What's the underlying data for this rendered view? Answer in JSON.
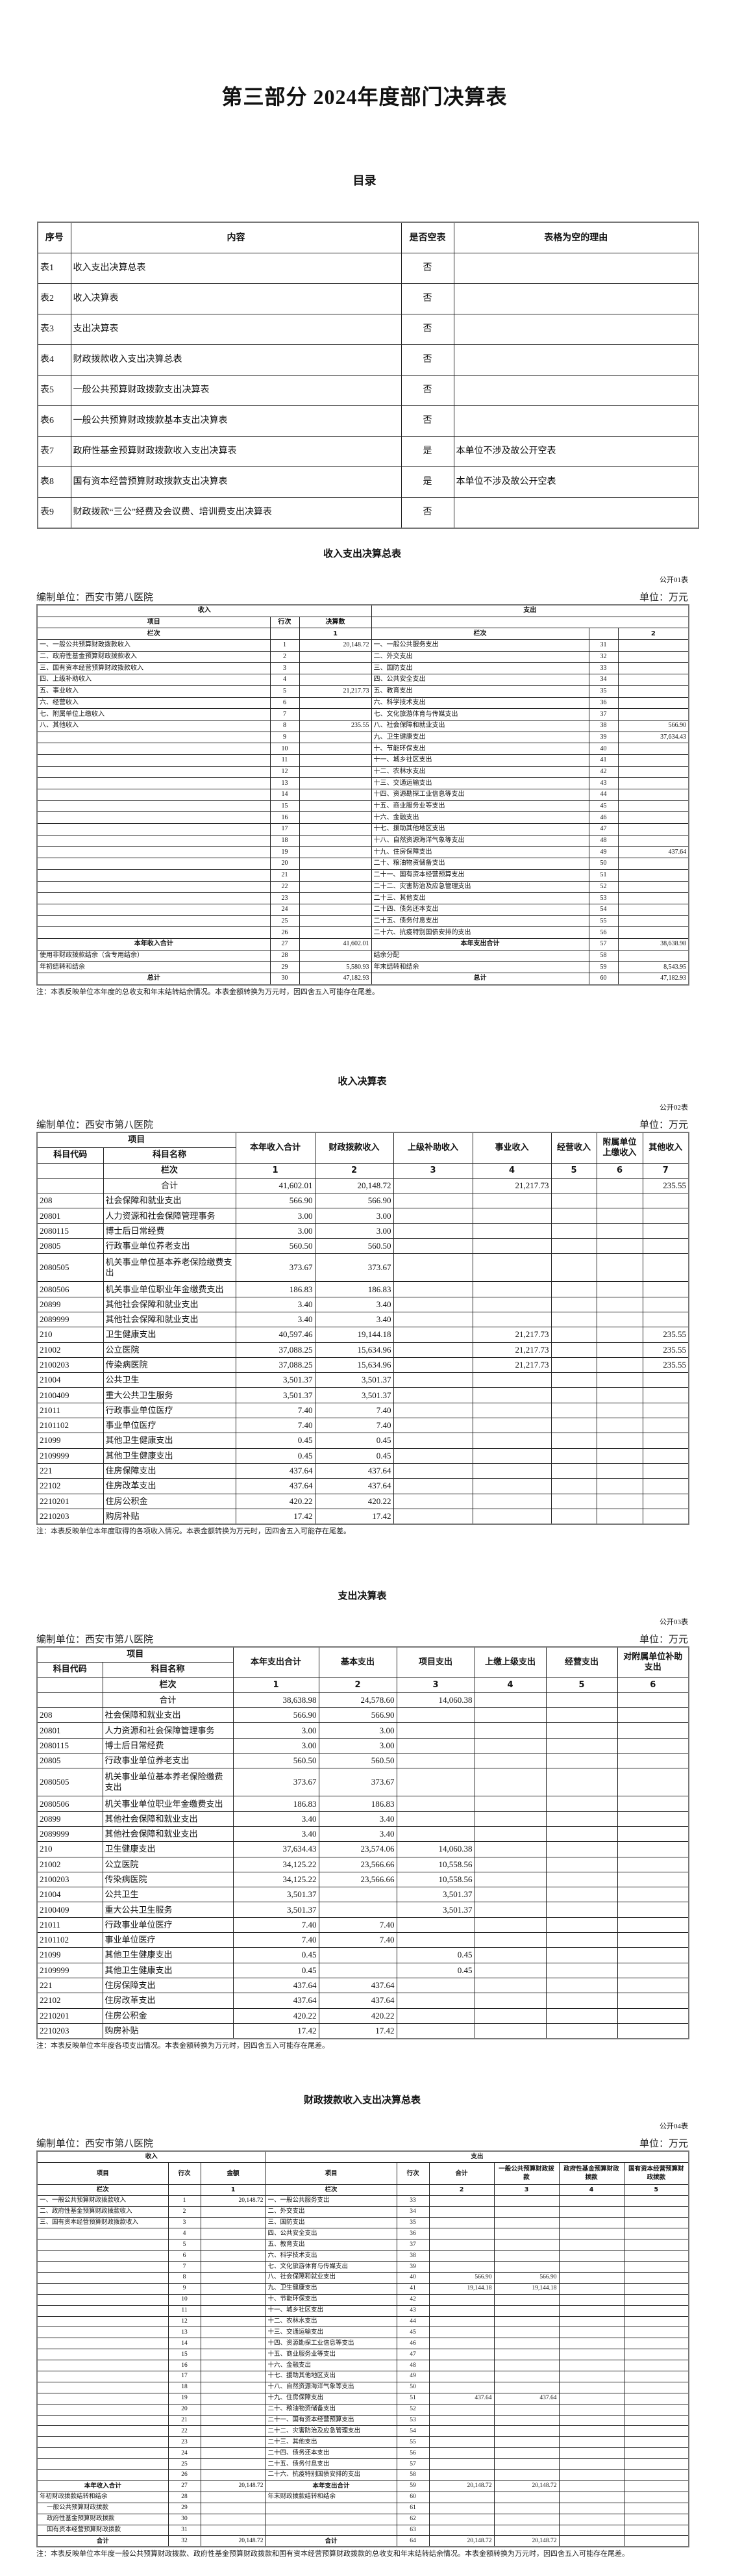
{
  "page_title": "第三部分 2024年度部门决算表",
  "toc": {
    "title": "目录",
    "headers": [
      "序号",
      "内容",
      "是否空表",
      "表格为空的理由"
    ],
    "rows": [
      [
        "表1",
        "收入支出决算总表",
        "否",
        ""
      ],
      [
        "表2",
        "收入决算表",
        "否",
        ""
      ],
      [
        "表3",
        "支出决算表",
        "否",
        ""
      ],
      [
        "表4",
        "财政拨款收入支出决算总表",
        "否",
        ""
      ],
      [
        "表5",
        "一般公共预算财政拨款支出决算表",
        "否",
        ""
      ],
      [
        "表6",
        "一般公共预算财政拨款基本支出决算表",
        "否",
        ""
      ],
      [
        "表7",
        "政府性基金预算财政拨款收入支出决算表",
        "是",
        "本单位不涉及故公开空表"
      ],
      [
        "表8",
        "国有资本经营预算财政拨款支出决算表",
        "是",
        "本单位不涉及故公开空表"
      ],
      [
        "表9",
        "财政拨款“三公”经费及会议费、培训费支出决算表",
        "否",
        ""
      ]
    ]
  },
  "org": "编制单位：西安市第八医院",
  "unit": "单位：万元",
  "t1": {
    "title": "收入支出决算总表",
    "code": "公开01表",
    "income_header": "收入",
    "expense_header": "支出",
    "col_headers": [
      "项目",
      "行次",
      "决算数"
    ],
    "lanci": [
      "栏次",
      "",
      "1",
      "栏次",
      "",
      "2"
    ],
    "rows": [
      [
        "一、一般公共预算财政拨款收入",
        "1",
        "20,148.72",
        "一、一般公共服务支出",
        "31",
        ""
      ],
      [
        "二、政府性基金预算财政拨款收入",
        "2",
        "",
        "二、外交支出",
        "32",
        ""
      ],
      [
        "三、国有资本经营预算财政拨款收入",
        "3",
        "",
        "三、国防支出",
        "33",
        ""
      ],
      [
        "四、上级补助收入",
        "4",
        "",
        "四、公共安全支出",
        "34",
        ""
      ],
      [
        "五、事业收入",
        "5",
        "21,217.73",
        "五、教育支出",
        "35",
        ""
      ],
      [
        "六、经营收入",
        "6",
        "",
        "六、科学技术支出",
        "36",
        ""
      ],
      [
        "七、附属单位上缴收入",
        "7",
        "",
        "七、文化旅游体育与传媒支出",
        "37",
        ""
      ],
      [
        "八、其他收入",
        "8",
        "235.55",
        "八、社会保障和就业支出",
        "38",
        "566.90"
      ],
      [
        "",
        "9",
        "",
        "九、卫生健康支出",
        "39",
        "37,634.43"
      ],
      [
        "",
        "10",
        "",
        "十、节能环保支出",
        "40",
        ""
      ],
      [
        "",
        "11",
        "",
        "十一、城乡社区支出",
        "41",
        ""
      ],
      [
        "",
        "12",
        "",
        "十二、农林水支出",
        "42",
        ""
      ],
      [
        "",
        "13",
        "",
        "十三、交通运输支出",
        "43",
        ""
      ],
      [
        "",
        "14",
        "",
        "十四、资源勘探工业信息等支出",
        "44",
        ""
      ],
      [
        "",
        "15",
        "",
        "十五、商业服务业等支出",
        "45",
        ""
      ],
      [
        "",
        "16",
        "",
        "十六、金融支出",
        "46",
        ""
      ],
      [
        "",
        "17",
        "",
        "十七、援助其他地区支出",
        "47",
        ""
      ],
      [
        "",
        "18",
        "",
        "十八、自然资源海洋气象等支出",
        "48",
        ""
      ],
      [
        "",
        "19",
        "",
        "十九、住房保障支出",
        "49",
        "437.64"
      ],
      [
        "",
        "20",
        "",
        "二十、粮油物资储备支出",
        "50",
        ""
      ],
      [
        "",
        "21",
        "",
        "二十一、国有资本经营预算支出",
        "51",
        ""
      ],
      [
        "",
        "22",
        "",
        "二十二、灾害防治及应急管理支出",
        "52",
        ""
      ],
      [
        "",
        "23",
        "",
        "二十三、其他支出",
        "53",
        ""
      ],
      [
        "",
        "24",
        "",
        "二十四、债务还本支出",
        "54",
        ""
      ],
      [
        "",
        "25",
        "",
        "二十五、债务付息支出",
        "55",
        ""
      ],
      [
        "",
        "26",
        "",
        "二十六、抗疫特别国债安排的支出",
        "56",
        ""
      ],
      [
        "本年收入合计",
        "27",
        "41,602.01",
        "本年支出合计",
        "57",
        "38,638.98"
      ],
      [
        "使用非财政拨款结余（含专用结余）",
        "28",
        "",
        "结余分配",
        "58",
        ""
      ],
      [
        "年初结转和结余",
        "29",
        "5,580.93",
        "年末结转和结余",
        "59",
        "8,543.95"
      ],
      [
        "总计",
        "30",
        "47,182.93",
        "总计",
        "60",
        "47,182.93"
      ]
    ],
    "note": "注：本表反映单位本年度的总收支和年末结转结余情况。本表金额转换为万元时，因四舍五入可能存在尾差。"
  },
  "t2": {
    "title": "收入决算表",
    "code": "公开02表",
    "item_header": "项目",
    "sub_headers": [
      "科目代码",
      "科目名称"
    ],
    "col_headers": [
      "本年收入合计",
      "财政拨款收入",
      "上级补助收入",
      "事业收入",
      "经营收入",
      "附属单位上缴收入",
      "其他收入"
    ],
    "lanci": [
      "",
      "栏次",
      "1",
      "2",
      "3",
      "4",
      "5",
      "6",
      "7"
    ],
    "rows": [
      [
        "",
        "合计",
        "41,602.01",
        "20,148.72",
        "",
        "21,217.73",
        "",
        "",
        "235.55"
      ],
      [
        "208",
        "社会保障和就业支出",
        "566.90",
        "566.90",
        "",
        "",
        "",
        "",
        ""
      ],
      [
        "20801",
        "人力资源和社会保障管理事务",
        "3.00",
        "3.00",
        "",
        "",
        "",
        "",
        ""
      ],
      [
        "2080115",
        "博士后日常经费",
        "3.00",
        "3.00",
        "",
        "",
        "",
        "",
        ""
      ],
      [
        "20805",
        "行政事业单位养老支出",
        "560.50",
        "560.50",
        "",
        "",
        "",
        "",
        ""
      ],
      [
        "2080505",
        "机关事业单位基本养老保险缴费支出",
        "373.67",
        "373.67",
        "",
        "",
        "",
        "",
        ""
      ],
      [
        "2080506",
        "机关事业单位职业年金缴费支出",
        "186.83",
        "186.83",
        "",
        "",
        "",
        "",
        ""
      ],
      [
        "20899",
        "其他社会保障和就业支出",
        "3.40",
        "3.40",
        "",
        "",
        "",
        "",
        ""
      ],
      [
        "2089999",
        "其他社会保障和就业支出",
        "3.40",
        "3.40",
        "",
        "",
        "",
        "",
        ""
      ],
      [
        "210",
        "卫生健康支出",
        "40,597.46",
        "19,144.18",
        "",
        "21,217.73",
        "",
        "",
        "235.55"
      ],
      [
        "21002",
        "公立医院",
        "37,088.25",
        "15,634.96",
        "",
        "21,217.73",
        "",
        "",
        "235.55"
      ],
      [
        "2100203",
        "传染病医院",
        "37,088.25",
        "15,634.96",
        "",
        "21,217.73",
        "",
        "",
        "235.55"
      ],
      [
        "21004",
        "公共卫生",
        "3,501.37",
        "3,501.37",
        "",
        "",
        "",
        "",
        ""
      ],
      [
        "2100409",
        "重大公共卫生服务",
        "3,501.37",
        "3,501.37",
        "",
        "",
        "",
        "",
        ""
      ],
      [
        "21011",
        "行政事业单位医疗",
        "7.40",
        "7.40",
        "",
        "",
        "",
        "",
        ""
      ],
      [
        "2101102",
        "事业单位医疗",
        "7.40",
        "7.40",
        "",
        "",
        "",
        "",
        ""
      ],
      [
        "21099",
        "其他卫生健康支出",
        "0.45",
        "0.45",
        "",
        "",
        "",
        "",
        ""
      ],
      [
        "2109999",
        "其他卫生健康支出",
        "0.45",
        "0.45",
        "",
        "",
        "",
        "",
        ""
      ],
      [
        "221",
        "住房保障支出",
        "437.64",
        "437.64",
        "",
        "",
        "",
        "",
        ""
      ],
      [
        "22102",
        "住房改革支出",
        "437.64",
        "437.64",
        "",
        "",
        "",
        "",
        ""
      ],
      [
        "2210201",
        "住房公积金",
        "420.22",
        "420.22",
        "",
        "",
        "",
        "",
        ""
      ],
      [
        "2210203",
        "购房补贴",
        "17.42",
        "17.42",
        "",
        "",
        "",
        "",
        ""
      ]
    ],
    "note": "注：本表反映单位本年度取得的各项收入情况。本表金额转换为万元时，因四舍五入可能存在尾差。"
  },
  "t3": {
    "title": "支出决算表",
    "code": "公开03表",
    "item_header": "项目",
    "sub_headers": [
      "科目代码",
      "科目名称"
    ],
    "col_headers": [
      "本年支出合计",
      "基本支出",
      "项目支出",
      "上缴上级支出",
      "经营支出",
      "对附属单位补助支出"
    ],
    "lanci": [
      "",
      "栏次",
      "1",
      "2",
      "3",
      "4",
      "5",
      "6"
    ],
    "rows": [
      [
        "",
        "合计",
        "38,638.98",
        "24,578.60",
        "14,060.38",
        "",
        "",
        ""
      ],
      [
        "208",
        "社会保障和就业支出",
        "566.90",
        "566.90",
        "",
        "",
        "",
        ""
      ],
      [
        "20801",
        "人力资源和社会保障管理事务",
        "3.00",
        "3.00",
        "",
        "",
        "",
        ""
      ],
      [
        "2080115",
        "博士后日常经费",
        "3.00",
        "3.00",
        "",
        "",
        "",
        ""
      ],
      [
        "20805",
        "行政事业单位养老支出",
        "560.50",
        "560.50",
        "",
        "",
        "",
        ""
      ],
      [
        "2080505",
        "机关事业单位基本养老保险缴费支出",
        "373.67",
        "373.67",
        "",
        "",
        "",
        ""
      ],
      [
        "2080506",
        "机关事业单位职业年金缴费支出",
        "186.83",
        "186.83",
        "",
        "",
        "",
        ""
      ],
      [
        "20899",
        "其他社会保障和就业支出",
        "3.40",
        "3.40",
        "",
        "",
        "",
        ""
      ],
      [
        "2089999",
        "其他社会保障和就业支出",
        "3.40",
        "3.40",
        "",
        "",
        "",
        ""
      ],
      [
        "210",
        "卫生健康支出",
        "37,634.43",
        "23,574.06",
        "14,060.38",
        "",
        "",
        ""
      ],
      [
        "21002",
        "公立医院",
        "34,125.22",
        "23,566.66",
        "10,558.56",
        "",
        "",
        ""
      ],
      [
        "2100203",
        "传染病医院",
        "34,125.22",
        "23,566.66",
        "10,558.56",
        "",
        "",
        ""
      ],
      [
        "21004",
        "公共卫生",
        "3,501.37",
        "",
        "3,501.37",
        "",
        "",
        ""
      ],
      [
        "2100409",
        "重大公共卫生服务",
        "3,501.37",
        "",
        "3,501.37",
        "",
        "",
        ""
      ],
      [
        "21011",
        "行政事业单位医疗",
        "7.40",
        "7.40",
        "",
        "",
        "",
        ""
      ],
      [
        "2101102",
        "事业单位医疗",
        "7.40",
        "7.40",
        "",
        "",
        "",
        ""
      ],
      [
        "21099",
        "其他卫生健康支出",
        "0.45",
        "",
        "0.45",
        "",
        "",
        ""
      ],
      [
        "2109999",
        "其他卫生健康支出",
        "0.45",
        "",
        "0.45",
        "",
        "",
        ""
      ],
      [
        "221",
        "住房保障支出",
        "437.64",
        "437.64",
        "",
        "",
        "",
        ""
      ],
      [
        "22102",
        "住房改革支出",
        "437.64",
        "437.64",
        "",
        "",
        "",
        ""
      ],
      [
        "2210201",
        "住房公积金",
        "420.22",
        "420.22",
        "",
        "",
        "",
        ""
      ],
      [
        "2210203",
        "购房补贴",
        "17.42",
        "17.42",
        "",
        "",
        "",
        ""
      ]
    ],
    "note": "注：本表反映单位本年度各项支出情况。本表金额转换为万元时，因四舍五入可能存在尾差。"
  },
  "t4": {
    "title": "财政拨款收入支出决算总表",
    "code": "公开04表",
    "income_header": "收入",
    "expense_header": "支出",
    "col_headers": [
      "项目",
      "行次",
      "金额",
      "项目",
      "行次",
      "合计",
      "一般公共预算财政拨款",
      "政府性基金预算财政拨款",
      "国有资本经营预算财政拨款"
    ],
    "lanci": [
      "栏次",
      "",
      "1",
      "栏次",
      "",
      "2",
      "3",
      "4",
      "5"
    ],
    "rows": [
      [
        "一、一般公共预算财政拨款收入",
        "1",
        "20,148.72",
        "一、一般公共服务支出",
        "33",
        "",
        "",
        "",
        ""
      ],
      [
        "二、政府性基金预算财政拨款收入",
        "2",
        "",
        "二、外交支出",
        "34",
        "",
        "",
        "",
        ""
      ],
      [
        "三、国有资本经营预算财政拨款收入",
        "3",
        "",
        "三、国防支出",
        "35",
        "",
        "",
        "",
        ""
      ],
      [
        "",
        "4",
        "",
        "四、公共安全支出",
        "36",
        "",
        "",
        "",
        ""
      ],
      [
        "",
        "5",
        "",
        "五、教育支出",
        "37",
        "",
        "",
        "",
        ""
      ],
      [
        "",
        "6",
        "",
        "六、科学技术支出",
        "38",
        "",
        "",
        "",
        ""
      ],
      [
        "",
        "7",
        "",
        "七、文化旅游体育与传媒支出",
        "39",
        "",
        "",
        "",
        ""
      ],
      [
        "",
        "8",
        "",
        "八、社会保障和就业支出",
        "40",
        "566.90",
        "566.90",
        "",
        ""
      ],
      [
        "",
        "9",
        "",
        "九、卫生健康支出",
        "41",
        "19,144.18",
        "19,144.18",
        "",
        ""
      ],
      [
        "",
        "10",
        "",
        "十、节能环保支出",
        "42",
        "",
        "",
        "",
        ""
      ],
      [
        "",
        "11",
        "",
        "十一、城乡社区支出",
        "43",
        "",
        "",
        "",
        ""
      ],
      [
        "",
        "12",
        "",
        "十二、农林水支出",
        "44",
        "",
        "",
        "",
        ""
      ],
      [
        "",
        "13",
        "",
        "十三、交通运输支出",
        "45",
        "",
        "",
        "",
        ""
      ],
      [
        "",
        "14",
        "",
        "十四、资源勘探工业信息等支出",
        "46",
        "",
        "",
        "",
        ""
      ],
      [
        "",
        "15",
        "",
        "十五、商业服务业等支出",
        "47",
        "",
        "",
        "",
        ""
      ],
      [
        "",
        "16",
        "",
        "十六、金融支出",
        "48",
        "",
        "",
        "",
        ""
      ],
      [
        "",
        "17",
        "",
        "十七、援助其他地区支出",
        "49",
        "",
        "",
        "",
        ""
      ],
      [
        "",
        "18",
        "",
        "十八、自然资源海洋气象等支出",
        "50",
        "",
        "",
        "",
        ""
      ],
      [
        "",
        "19",
        "",
        "十九、住房保障支出",
        "51",
        "437.64",
        "437.64",
        "",
        ""
      ],
      [
        "",
        "20",
        "",
        "二十、粮油物资储备支出",
        "52",
        "",
        "",
        "",
        ""
      ],
      [
        "",
        "21",
        "",
        "二十一、国有资本经营预算支出",
        "53",
        "",
        "",
        "",
        ""
      ],
      [
        "",
        "22",
        "",
        "二十二、灾害防治及应急管理支出",
        "54",
        "",
        "",
        "",
        ""
      ],
      [
        "",
        "23",
        "",
        "二十三、其他支出",
        "55",
        "",
        "",
        "",
        ""
      ],
      [
        "",
        "24",
        "",
        "二十四、债务还本支出",
        "56",
        "",
        "",
        "",
        ""
      ],
      [
        "",
        "25",
        "",
        "二十五、债务付息支出",
        "57",
        "",
        "",
        "",
        ""
      ],
      [
        "",
        "26",
        "",
        "二十六、抗疫特别国债安排的支出",
        "58",
        "",
        "",
        "",
        ""
      ],
      [
        "本年收入合计",
        "27",
        "20,148.72",
        "本年支出合计",
        "59",
        "20,148.72",
        "20,148.72",
        "",
        ""
      ],
      [
        "年初财政拨款结转和结余",
        "28",
        "",
        "年末财政拨款结转和结余",
        "60",
        "",
        "",
        "",
        ""
      ],
      [
        "一般公共预算财政拨款",
        "29",
        "",
        "",
        "61",
        "",
        "",
        "",
        ""
      ],
      [
        "政府性基金预算财政拨款",
        "30",
        "",
        "",
        "62",
        "",
        "",
        "",
        ""
      ],
      [
        "国有资本经营预算财政拨款",
        "31",
        "",
        "",
        "63",
        "",
        "",
        "",
        ""
      ],
      [
        "合计",
        "32",
        "20,148.72",
        "合计",
        "64",
        "20,148.72",
        "20,148.72",
        "",
        ""
      ]
    ],
    "note": "注：本表反映单位本年度一般公共预算财政拨款、政府性基金预算财政拨款和国有资本经营预算财政拨款的总收支和年末结转结余情况。本表金额转换为万元时，因四舍五入可能存在尾差。"
  }
}
